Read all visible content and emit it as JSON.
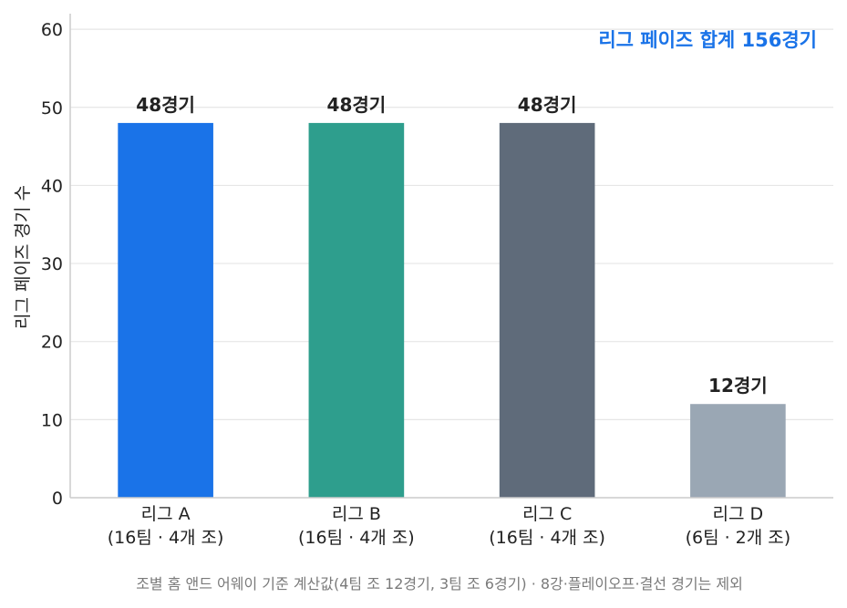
{
  "chart_data": {
    "type": "bar",
    "categories": [
      [
        "리그 A",
        "(16팀 · 4개 조)"
      ],
      [
        "리그 B",
        "(16팀 · 4개 조)"
      ],
      [
        "리그 C",
        "(16팀 · 4개 조)"
      ],
      [
        "리그 D",
        "(6팀 · 2개 조)"
      ]
    ],
    "values": [
      48,
      48,
      48,
      12
    ],
    "value_labels": [
      "48경기",
      "48경기",
      "48경기",
      "12경기"
    ],
    "colors": [
      "#1a73e8",
      "#2e9e8d",
      "#5f6b7a",
      "#9aa7b4"
    ],
    "ylabel": "리그 페이즈 경기 수",
    "ylim": [
      0,
      62
    ],
    "yticks": [
      0,
      10,
      20,
      30,
      40,
      50,
      60
    ],
    "grid": true,
    "annotation": "리그 페이즈 합계 156경기",
    "annotation_color": "#1a73e8",
    "footnote": "조별 홈 앤드 어웨이 기준 계산값(4팀 조 12경기, 3팀 조 6경기) · 8강·플레이오프·결선 경기는 제외"
  }
}
